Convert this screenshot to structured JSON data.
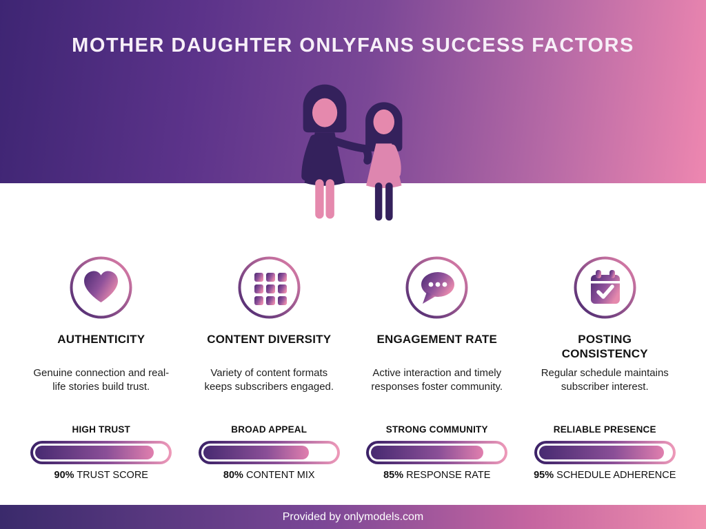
{
  "page_title": "MOTHER DAUGHTER ONLYFANS SUCCESS FACTORS",
  "hero": {
    "illustration": "mother-daughter-silhouette"
  },
  "columns": [
    {
      "icon": "heart-icon",
      "title": "AUTHENTICITY",
      "description": "Genuine connection and real-life stories build trust.",
      "bar_label": "HIGH TRUST",
      "percent": 90,
      "stat_value": "90%",
      "stat_label": " TRUST SCORE"
    },
    {
      "icon": "grid-icon",
      "title": "CONTENT DIVERSITY",
      "description": "Variety of content formats keeps subscribers engaged.",
      "bar_label": "BROAD APPEAL",
      "percent": 80,
      "stat_value": "80%",
      "stat_label": " CONTENT MIX"
    },
    {
      "icon": "chat-bubble-icon",
      "title": "ENGAGEMENT RATE",
      "description": "Active interaction and timely responses foster community.",
      "bar_label": "STRONG COMMUNITY",
      "percent": 85,
      "stat_value": "85%",
      "stat_label": " RESPONSE RATE"
    },
    {
      "icon": "calendar-check-icon",
      "title": "POSTING CONSISTENCY",
      "description": "Regular schedule maintains subscriber interest.",
      "bar_label": "RELIABLE PRESENCE",
      "percent": 95,
      "stat_value": "95%",
      "stat_label": " SCHEDULE ADHERENCE"
    }
  ],
  "footer": {
    "text": "Provided by onlymodels.com"
  },
  "colors": {
    "gradient_dark": "#3E2573",
    "gradient_mid": "#7A4796",
    "gradient_pink": "#EE87B0",
    "figure_dark": "#34215C",
    "figure_pink": "#E589AD",
    "text_dark": "#131313",
    "background": "#FFFFFF"
  }
}
